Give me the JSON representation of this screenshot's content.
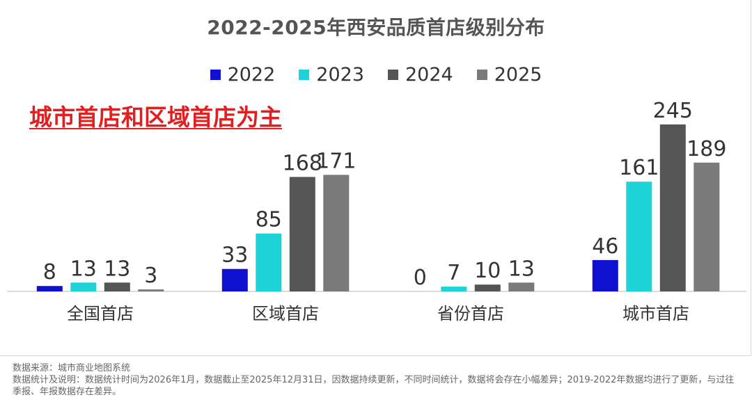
{
  "chart_data": {
    "type": "bar",
    "title": "2022-2025年西安品质首店级别分布",
    "annotation": "城市首店和区域首店为主",
    "categories": [
      "全国首店",
      "区域首店",
      "省份首店",
      "城市首店"
    ],
    "series": [
      {
        "name": "2022",
        "color": "#1010d0",
        "values": [
          8,
          33,
          0,
          46
        ]
      },
      {
        "name": "2023",
        "color": "#1dd3d8",
        "values": [
          13,
          85,
          7,
          161
        ]
      },
      {
        "name": "2024",
        "color": "#555555",
        "values": [
          13,
          168,
          10,
          245
        ]
      },
      {
        "name": "2025",
        "color": "#7a7a7a",
        "values": [
          3,
          171,
          13,
          189
        ]
      }
    ],
    "ylim": [
      0,
      250
    ],
    "legend_position": "top-center",
    "grid": false,
    "xlabel": "",
    "ylabel": ""
  },
  "footer": {
    "source": "数据来源：城市商业地图系统",
    "note": "数据统计及说明：数据统计时间为2026年1月，数据截止至2025年12月31日，因数据持续更新，不同时间统计，数据将会存在小幅差异；2019-2022年数据均进行了更新，与过往季报、年报数据存在差异。"
  }
}
